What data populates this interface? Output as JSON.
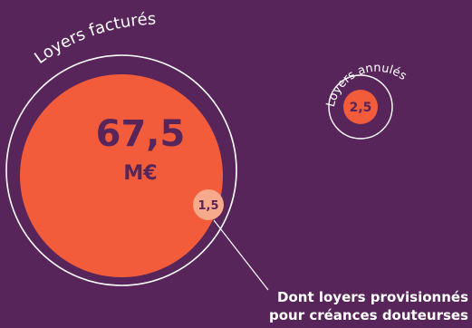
{
  "colors": {
    "background": "#58255b",
    "primary": "#f25c3b",
    "secondary": "#f7a98b",
    "text_dark": "#58255b",
    "text_light": "#ffffff",
    "outline": "#ffffff"
  },
  "chart_data": {
    "type": "bubble",
    "bubbles": [
      {
        "label": "Loyers facturés",
        "value": 67.5,
        "value_label": "67,5",
        "unit": "M€"
      },
      {
        "label": "Loyers annulés",
        "value": 2.5,
        "value_label": "2,5"
      },
      {
        "label_line1": "Dont loyers provisionnés",
        "label_line2": "pour créances douteurses",
        "value": 1.5,
        "value_label": "1,5"
      }
    ]
  }
}
